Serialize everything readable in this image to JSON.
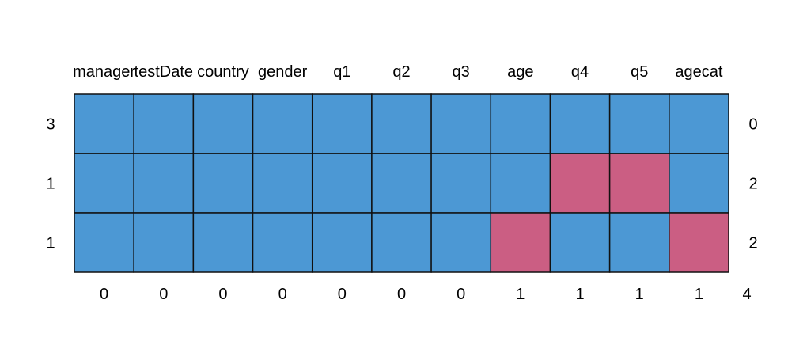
{
  "chart_data": {
    "type": "heatmap",
    "title": "",
    "columns": [
      "manager",
      "testDate",
      "country",
      "gender",
      "q1",
      "q2",
      "q3",
      "age",
      "q4",
      "q5",
      "agecat"
    ],
    "rows": [
      {
        "pattern": [
          1,
          1,
          1,
          1,
          1,
          1,
          1,
          1,
          1,
          1,
          1
        ],
        "row_count": "3",
        "missing_count": "0"
      },
      {
        "pattern": [
          1,
          1,
          1,
          1,
          1,
          1,
          1,
          1,
          0,
          0,
          1
        ],
        "row_count": "1",
        "missing_count": "2"
      },
      {
        "pattern": [
          1,
          1,
          1,
          1,
          1,
          1,
          1,
          0,
          1,
          1,
          0
        ],
        "row_count": "1",
        "missing_count": "2"
      }
    ],
    "column_missing_totals": [
      "0",
      "0",
      "0",
      "0",
      "0",
      "0",
      "0",
      "1",
      "1",
      "1",
      "1"
    ],
    "total_missing": "4",
    "colors": {
      "observed": "#4C98D4",
      "missing": "#CB5E83",
      "grid": "#111111"
    }
  }
}
